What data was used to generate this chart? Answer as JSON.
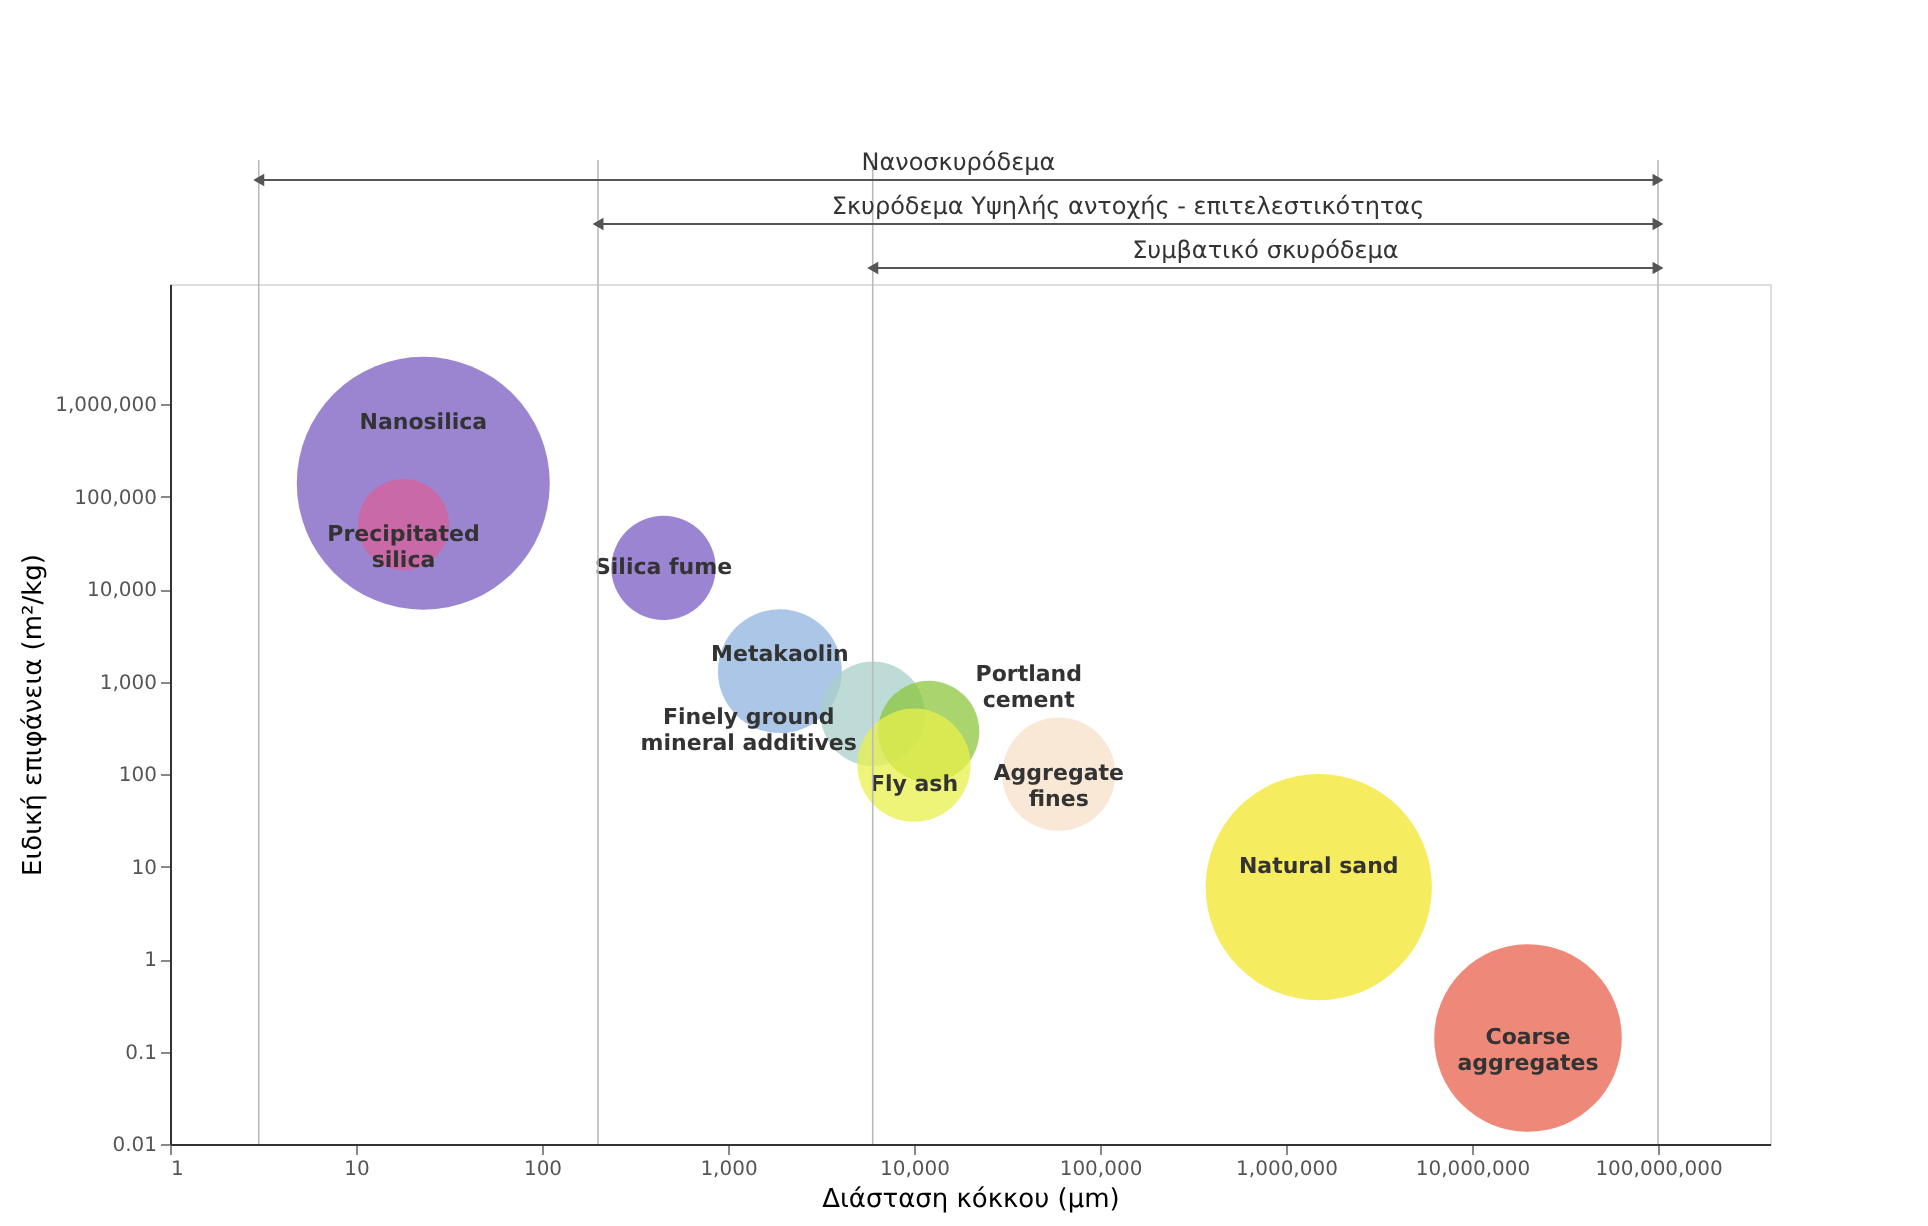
{
  "chart_data": {
    "type": "bubble",
    "xlabel": "Διάσταση κόκκου (μm)",
    "ylabel": "Ειδική επιφάνεια (m²/kg)",
    "log": "xy",
    "grid": false,
    "legend": false,
    "marker": "circle",
    "xlim": [
      1,
      400000000
    ],
    "xticks": [
      1,
      10,
      100,
      {
        "value": 1000,
        "label": "1,000"
      },
      {
        "value": 10000,
        "label": "10,000"
      },
      {
        "value": 100000,
        "label": "100,000"
      },
      {
        "value": 1000000,
        "label": "1,000,000"
      },
      {
        "value": 10000000,
        "label": "10,000,000"
      },
      {
        "value": 100000000,
        "label": "100,000,000"
      }
    ],
    "ylim": [
      0.01,
      20000000
    ],
    "yticks": [
      0.01,
      0.1,
      1,
      10,
      100,
      {
        "value": 1000,
        "label": "1,000"
      },
      {
        "value": 10000,
        "label": "10,000"
      },
      {
        "value": 100000,
        "label": "100,000"
      },
      {
        "value": 1000000,
        "label": "1,000,000"
      }
    ],
    "series": [
      {
        "name": "Nanosilica",
        "color": "#7b5cc0",
        "x": [
          23
        ],
        "values": [
          140000
        ],
        "sizes": [
          1
        ]
      },
      {
        "name": "Precipitated silica",
        "color": "#d8609a",
        "x": [
          18
        ],
        "values": [
          50000
        ],
        "sizes": [
          0.13
        ]
      },
      {
        "name": "Silica fume",
        "color": "#7a5cc4",
        "x": [
          450
        ],
        "values": [
          17000
        ],
        "sizes": [
          0.17
        ]
      },
      {
        "name": "Metakaolin",
        "color": "#8fb3df",
        "x": [
          1900
        ],
        "values": [
          1300
        ],
        "sizes": [
          0.24
        ]
      },
      {
        "name": "Finely ground mineral additives",
        "color": "#a9cfc9",
        "x": [
          6000
        ],
        "values": [
          450
        ],
        "sizes": [
          0.17
        ]
      },
      {
        "name": "Portland cement",
        "color": "#8cc63e",
        "x": [
          12000
        ],
        "values": [
          290
        ],
        "sizes": [
          0.16
        ]
      },
      {
        "name": "Fly ash",
        "color": "#e8f04a",
        "x": [
          10000
        ],
        "values": [
          125
        ],
        "sizes": [
          0.2
        ]
      },
      {
        "name": "Aggregate fines",
        "color": "#f8e0c8",
        "x": [
          60000
        ],
        "values": [
          100
        ],
        "sizes": [
          0.2
        ]
      },
      {
        "name": "Natural sand",
        "color": "#f3e52a",
        "x": [
          1500000
        ],
        "values": [
          6
        ],
        "sizes": [
          0.8
        ]
      },
      {
        "name": "Coarse aggregates",
        "color": "#e8604c",
        "x": [
          20000000
        ],
        "values": [
          0.14
        ],
        "sizes": [
          0.55
        ]
      }
    ],
    "ref_lines": [
      {
        "axis": "x",
        "value": 3,
        "color": "#bbbbbb"
      },
      {
        "axis": "x",
        "value": 200,
        "color": "#bbbbbb"
      },
      {
        "axis": "x",
        "value": 6000,
        "color": "#bbbbbb"
      },
      {
        "axis": "x",
        "value": 100000000,
        "color": "#bbbbbb"
      }
    ],
    "annotations": [
      "Νανοσκυρόδεμα",
      "Σκυρόδεμα Υψηλής αντοχής - επιτελεστικότητας",
      "Συμβατικό σκυρόδεμα"
    ]
  }
}
